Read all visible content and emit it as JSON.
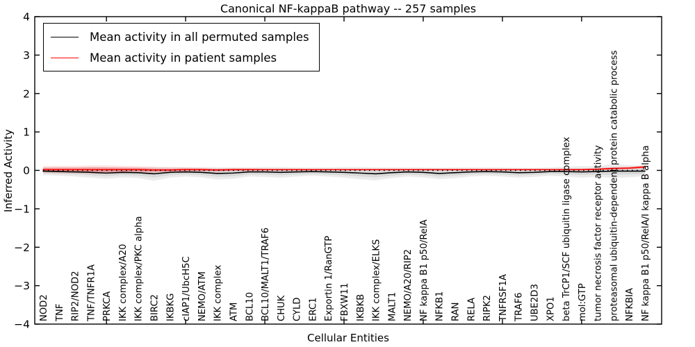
{
  "chart_data": {
    "type": "line",
    "title": "Canonical NF-kappaB pathway -- 257 samples",
    "xlabel": "Cellular Entities",
    "ylabel": "Inferred Activity",
    "ylim": [
      -4,
      4
    ],
    "ytick_labels": [
      "4",
      "3",
      "2",
      "1",
      "0",
      "−1",
      "−2",
      "−3",
      "−4"
    ],
    "grid": false,
    "legend_position": "upper-left",
    "categories": [
      "NOD2",
      "TNF",
      "RIP2/NOD2",
      "TNF/TNFR1A",
      "PRKCA",
      "IKK complex/A20",
      "IKK complex/PKC alpha",
      "BIRC2",
      "IKBKG",
      "cIAP1/UbcH5C",
      "NEMO/ATM",
      "IKK complex",
      "ATM",
      "BCL10",
      "BCL10/MALT1/TRAF6",
      "CHUK",
      "CYLD",
      "ERC1",
      "Exportin 1/RanGTP",
      "FBXW11",
      "IKBKB",
      "IKK complex/ELKS",
      "MALT1",
      "NEMO/A20/RIP2",
      "NF kappa B1 p50/RelA",
      "NFKB1",
      "RAN",
      "RELA",
      "RIPK2",
      "TNFRSF1A",
      "TRAF6",
      "UBE2D3",
      "XPO1",
      "beta TrCP1/SCF ubiquitin ligase complex",
      "mol:GTP",
      "tumor necrosis factor receptor activity",
      "proteasomal ubiquitin-dependent protein catabolic process",
      "NFKBIA",
      "NF kappa B1 p50/RelA/I kappa B alpha"
    ],
    "series": [
      {
        "name": "Mean activity in all permuted samples",
        "color": "#000000",
        "band_color_outer": "#ebebeb",
        "band_color_inner": "#d9d9d9",
        "values": [
          -0.02,
          -0.03,
          -0.04,
          -0.05,
          -0.07,
          -0.05,
          -0.06,
          -0.09,
          -0.05,
          -0.04,
          -0.05,
          -0.08,
          -0.07,
          -0.04,
          -0.04,
          -0.05,
          -0.04,
          -0.03,
          -0.04,
          -0.05,
          -0.07,
          -0.09,
          -0.06,
          -0.04,
          -0.05,
          -0.08,
          -0.06,
          -0.04,
          -0.03,
          -0.04,
          -0.06,
          -0.05,
          -0.03,
          -0.03,
          -0.04,
          -0.03,
          -0.02,
          -0.02,
          -0.02
        ],
        "band_halfwidth": [
          0.1,
          0.11,
          0.12,
          0.14,
          0.15,
          0.13,
          0.14,
          0.18,
          0.14,
          0.12,
          0.13,
          0.16,
          0.15,
          0.12,
          0.13,
          0.14,
          0.12,
          0.11,
          0.12,
          0.14,
          0.16,
          0.17,
          0.14,
          0.12,
          0.13,
          0.15,
          0.14,
          0.12,
          0.11,
          0.12,
          0.13,
          0.12,
          0.11,
          0.13,
          0.15,
          0.14,
          0.18,
          0.16,
          0.13
        ]
      },
      {
        "name": "Mean activity in patient samples",
        "color": "#ff0000",
        "band_color_outer": "rgba(255,0,0,0.10)",
        "band_color_inner": "rgba(255,0,0,0.22)",
        "values": [
          0.02,
          0.02,
          0.02,
          0.02,
          0.02,
          0.02,
          0.02,
          0.01,
          0.01,
          0.02,
          0.02,
          0.01,
          0.02,
          0.02,
          0.02,
          0.02,
          0.02,
          0.02,
          0.02,
          0.02,
          0.02,
          0.02,
          0.02,
          0.02,
          0.02,
          0.02,
          0.02,
          0.02,
          0.02,
          0.02,
          0.02,
          0.02,
          0.02,
          0.02,
          0.02,
          0.03,
          0.05,
          0.06,
          0.09
        ],
        "band_halfwidth": [
          0.09,
          0.1,
          0.1,
          0.11,
          0.11,
          0.1,
          0.09,
          0.08,
          0.07,
          0.06,
          0.05,
          0.05,
          0.04,
          0.04,
          0.03,
          0.03,
          0.03,
          0.02,
          0.02,
          0.02,
          0.02,
          0.02,
          0.02,
          0.02,
          0.02,
          0.02,
          0.02,
          0.02,
          0.02,
          0.02,
          0.02,
          0.02,
          0.02,
          0.03,
          0.03,
          0.03,
          0.04,
          0.04,
          0.05
        ]
      }
    ],
    "zero_line": {
      "value": 0,
      "style": "dotted",
      "color": "#000000"
    }
  },
  "colors": {
    "axis": "#000000",
    "background": "#ffffff"
  }
}
